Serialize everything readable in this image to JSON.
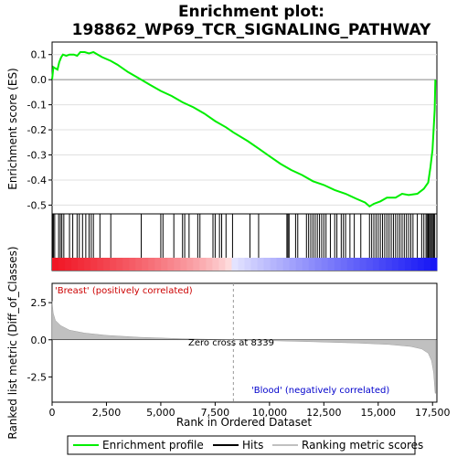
{
  "chart_data": {
    "type": "line",
    "title_line1": "Enrichment plot:",
    "title_line2": "198862_WP69_TCR_SIGNALING_PATHWAY",
    "xlabel": "Rank in Ordered Dataset",
    "ylabel_top": "Enrichment score (ES)",
    "ylabel_bottom": "Ranked list metric (Diff_of_Classes)",
    "xlim": [
      0,
      17700
    ],
    "es_ylim": [
      -0.535,
      0.15
    ],
    "metric_ylim": [
      -4.2,
      3.8
    ],
    "x_ticks": [
      0,
      2500,
      5000,
      7500,
      10000,
      12500,
      15000,
      17500
    ],
    "x_tick_labels": [
      "0",
      "2,500",
      "5,000",
      "7,500",
      "10,000",
      "12,500",
      "15,000",
      "17,500"
    ],
    "es_ticks": [
      0.1,
      0.0,
      -0.1,
      -0.2,
      -0.3,
      -0.4,
      -0.5
    ],
    "es_tick_labels": [
      "0.1",
      "0.0",
      "-0.1",
      "-0.2",
      "-0.3",
      "-0.4",
      "-0.5"
    ],
    "metric_ticks": [
      2.5,
      0.0,
      -2.5
    ],
    "metric_tick_labels": [
      "2.5",
      "0.0",
      "-2.5"
    ],
    "zero_cross_rank": 8339,
    "zero_cross_label": "Zero cross at 8339",
    "pos_label": "'Breast' (positively correlated)",
    "neg_label": "'Blood' (negatively correlated)",
    "legend": [
      "Enrichment profile",
      "Hits",
      "Ranking metric scores"
    ],
    "colors": {
      "enrichment": "#00ee00",
      "hits": "#000000",
      "metric_fill": "#c0c0c0",
      "pos_label": "#cc0000",
      "neg_label": "#0000cc"
    },
    "es_profile": [
      [
        0,
        0.0
      ],
      [
        60,
        0.05
      ],
      [
        250,
        0.04
      ],
      [
        330,
        0.07
      ],
      [
        420,
        0.09
      ],
      [
        500,
        0.1
      ],
      [
        650,
        0.095
      ],
      [
        800,
        0.1
      ],
      [
        1000,
        0.1
      ],
      [
        1150,
        0.095
      ],
      [
        1300,
        0.11
      ],
      [
        1500,
        0.11
      ],
      [
        1700,
        0.105
      ],
      [
        1900,
        0.11
      ],
      [
        2100,
        0.1
      ],
      [
        2300,
        0.09
      ],
      [
        2700,
        0.075
      ],
      [
        3000,
        0.06
      ],
      [
        3500,
        0.03
      ],
      [
        4000,
        0.005
      ],
      [
        4500,
        -0.02
      ],
      [
        5000,
        -0.045
      ],
      [
        5500,
        -0.065
      ],
      [
        6000,
        -0.09
      ],
      [
        6500,
        -0.11
      ],
      [
        7000,
        -0.135
      ],
      [
        7500,
        -0.165
      ],
      [
        8000,
        -0.19
      ],
      [
        8339,
        -0.21
      ],
      [
        9000,
        -0.245
      ],
      [
        9500,
        -0.275
      ],
      [
        10000,
        -0.305
      ],
      [
        10500,
        -0.335
      ],
      [
        11000,
        -0.36
      ],
      [
        11500,
        -0.38
      ],
      [
        12000,
        -0.405
      ],
      [
        12500,
        -0.42
      ],
      [
        13000,
        -0.44
      ],
      [
        13500,
        -0.455
      ],
      [
        14000,
        -0.475
      ],
      [
        14400,
        -0.49
      ],
      [
        14600,
        -0.505
      ],
      [
        14800,
        -0.495
      ],
      [
        15100,
        -0.485
      ],
      [
        15400,
        -0.47
      ],
      [
        15800,
        -0.47
      ],
      [
        16100,
        -0.455
      ],
      [
        16400,
        -0.46
      ],
      [
        16800,
        -0.455
      ],
      [
        17100,
        -0.435
      ],
      [
        17300,
        -0.41
      ],
      [
        17400,
        -0.35
      ],
      [
        17500,
        -0.28
      ],
      [
        17550,
        -0.2
      ],
      [
        17600,
        -0.12
      ],
      [
        17630,
        0.0
      ]
    ],
    "hits": [
      20,
      60,
      120,
      300,
      380,
      450,
      540,
      800,
      950,
      1150,
      1250,
      1400,
      1550,
      1700,
      1800,
      1900,
      2200,
      2700,
      4100,
      5000,
      5100,
      5600,
      6000,
      6100,
      6300,
      6700,
      6800,
      7400,
      7500,
      7700,
      7800,
      8000,
      8300,
      9100,
      9500,
      10800,
      10850,
      10900,
      11200,
      11300,
      11700,
      11800,
      11900,
      12000,
      12100,
      12200,
      12300,
      12400,
      12500,
      12600,
      12800,
      13000,
      13100,
      13300,
      13400,
      13500,
      13700,
      13900,
      14200,
      14600,
      14700,
      14800,
      14900,
      15000,
      15100,
      15200,
      15300,
      15400,
      15500,
      15600,
      15700,
      15800,
      15900,
      16000,
      16100,
      16200,
      16300,
      16400,
      16500,
      16600,
      16800,
      17000,
      17100,
      17200,
      17250,
      17300,
      17350,
      17400,
      17450,
      17500,
      17550,
      17600
    ],
    "metric_curve": [
      [
        0,
        2.6
      ],
      [
        50,
        1.8
      ],
      [
        150,
        1.3
      ],
      [
        400,
        0.95
      ],
      [
        800,
        0.65
      ],
      [
        1500,
        0.45
      ],
      [
        2500,
        0.3
      ],
      [
        4000,
        0.17
      ],
      [
        6000,
        0.07
      ],
      [
        8339,
        0.0
      ],
      [
        10000,
        -0.06
      ],
      [
        12000,
        -0.13
      ],
      [
        14000,
        -0.22
      ],
      [
        15500,
        -0.32
      ],
      [
        16500,
        -0.45
      ],
      [
        17000,
        -0.62
      ],
      [
        17300,
        -0.9
      ],
      [
        17450,
        -1.4
      ],
      [
        17550,
        -2.2
      ],
      [
        17620,
        -3.6
      ],
      [
        17650,
        -3.6
      ]
    ]
  }
}
